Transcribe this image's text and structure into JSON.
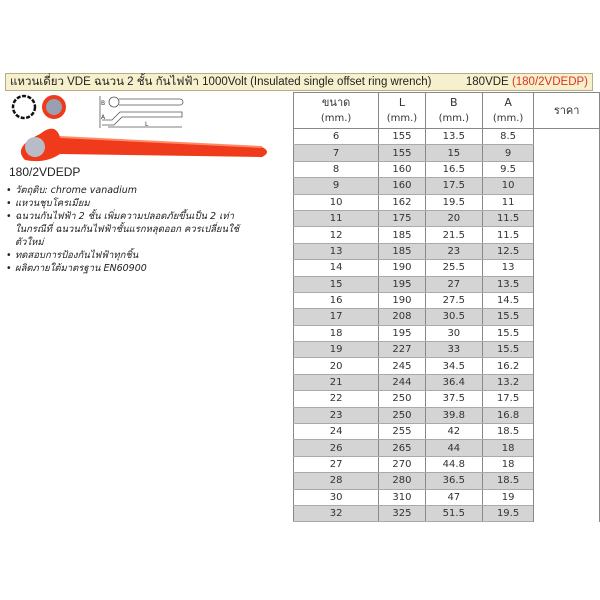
{
  "title": {
    "text": "แหวนเดี่ยว VDE ฉนวน 2 ชั้น กันไฟฟ้า 1000Volt (Insulated single offset ring wrench)",
    "code": "180VDE",
    "code_alt": "(180/2VDEDP)"
  },
  "product": {
    "model": "180/2VDEDP",
    "features": [
      "วัตถุดิบ: chrome vanadium",
      "แหวนชุบโครเมียม",
      "ฉนวนกันไฟฟ้า 2 ชั้น เพิ่มความปลอดภัยขึ้นเป็น 2 เท่า ในกรณีที่ ฉนวนกันไฟฟ้าชั้นแรกหลุดออก ควรเปลี่ยนใช้ตัวใหม่",
      "ทดสอบการป้องกันไฟฟ้าทุกชิ้น",
      "ผลิตภายใต้มาตรฐาน EN60900"
    ],
    "diagram_labels": {
      "b": "B",
      "a": "A",
      "l": "L"
    }
  },
  "table": {
    "headers": [
      {
        "label": "ขนาด",
        "unit": "(mm.)"
      },
      {
        "label": "L",
        "unit": "(mm.)"
      },
      {
        "label": "B",
        "unit": "(mm.)"
      },
      {
        "label": "A",
        "unit": "(mm.)"
      },
      {
        "label": "ราคา",
        "unit": ""
      }
    ],
    "rows": [
      [
        "6",
        "155",
        "13.5",
        "8.5"
      ],
      [
        "7",
        "155",
        "15",
        "9"
      ],
      [
        "8",
        "160",
        "16.5",
        "9.5"
      ],
      [
        "9",
        "160",
        "17.5",
        "10"
      ],
      [
        "10",
        "162",
        "19.5",
        "11"
      ],
      [
        "11",
        "175",
        "20",
        "11.5"
      ],
      [
        "12",
        "185",
        "21.5",
        "11.5"
      ],
      [
        "13",
        "185",
        "23",
        "12.5"
      ],
      [
        "14",
        "190",
        "25.5",
        "13"
      ],
      [
        "15",
        "195",
        "27",
        "13.5"
      ],
      [
        "16",
        "190",
        "27.5",
        "14.5"
      ],
      [
        "17",
        "208",
        "30.5",
        "15.5"
      ],
      [
        "18",
        "195",
        "30",
        "15.5"
      ],
      [
        "19",
        "227",
        "33",
        "15.5"
      ],
      [
        "20",
        "245",
        "34.5",
        "16.2"
      ],
      [
        "21",
        "244",
        "36.4",
        "13.2"
      ],
      [
        "22",
        "250",
        "37.5",
        "17.5"
      ],
      [
        "23",
        "250",
        "39.8",
        "16.8"
      ],
      [
        "24",
        "255",
        "42",
        "18.5"
      ],
      [
        "26",
        "265",
        "44",
        "18"
      ],
      [
        "27",
        "270",
        "44.8",
        "18"
      ],
      [
        "28",
        "280",
        "36.5",
        "18.5"
      ],
      [
        "30",
        "310",
        "47",
        "19"
      ],
      [
        "32",
        "325",
        "51.5",
        "19.5"
      ]
    ]
  },
  "colors": {
    "accent": "#e0302a",
    "insulation": "#f03a1c",
    "title_bg": "#f6f1cc",
    "row_alt": "#d4d4d4"
  }
}
